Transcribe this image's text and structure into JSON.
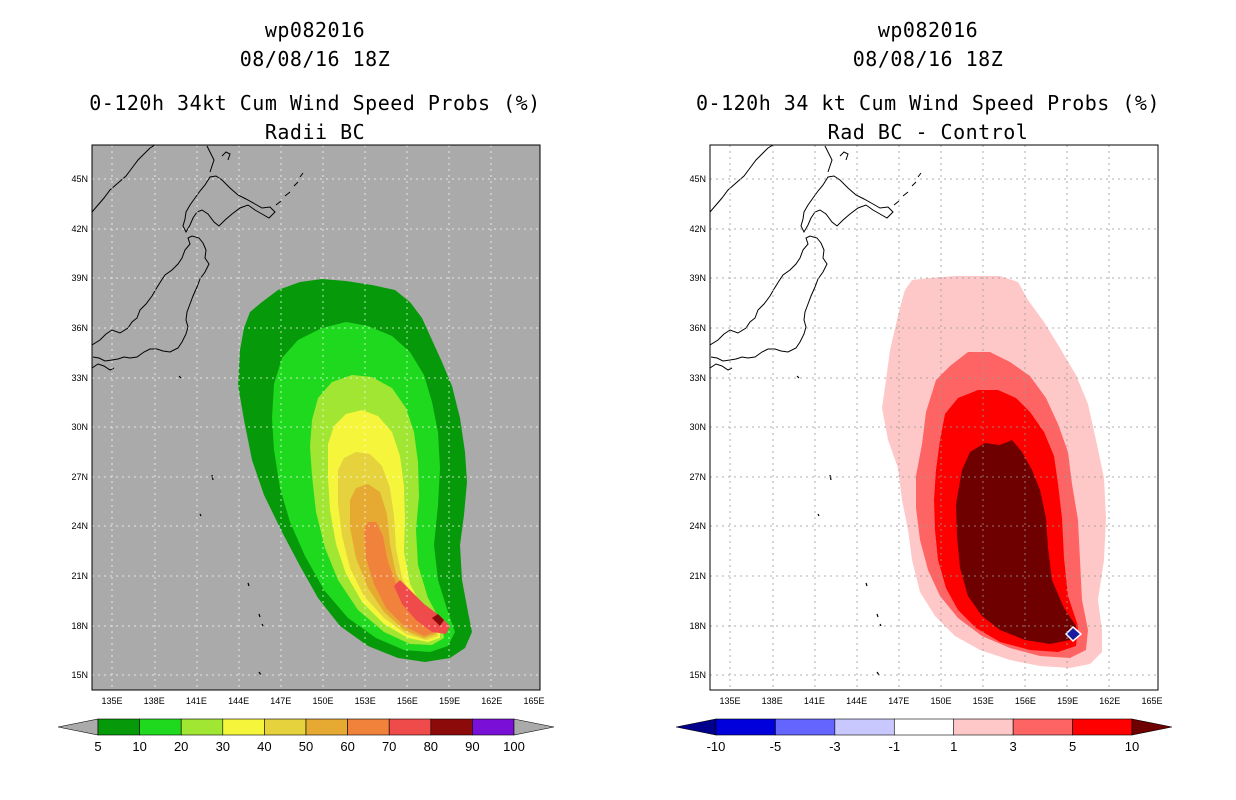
{
  "left_panel": {
    "storm_id": "wp082016",
    "date": "08/08/16 18Z",
    "product": "0-120h 34kt Cum Wind Speed Probs (%)",
    "subtitle": "Radii BC",
    "colorbar": {
      "labels": [
        "5",
        "10",
        "20",
        "30",
        "40",
        "50",
        "60",
        "70",
        "80",
        "90",
        "100"
      ],
      "colors": [
        "#069a0a",
        "#1ed91e",
        "#a0e632",
        "#f5f53c",
        "#e6d23c",
        "#e6aa32",
        "#f0823c",
        "#f04b4b",
        "#8c0a0a",
        "#7a10d8"
      ],
      "under_color": "#aaaaaa",
      "over_color": "#aaaaaa"
    },
    "background_color": "#aaaaaa"
  },
  "right_panel": {
    "storm_id": "wp082016",
    "date": "08/08/16 18Z",
    "product": "0-120h 34 kt Cum Wind Speed Probs (%)",
    "subtitle": "Rad BC - Control",
    "colorbar": {
      "labels": [
        "-10",
        "-5",
        "-3",
        "-1",
        "1",
        "3",
        "5",
        "10"
      ],
      "colors": [
        "#0000dd",
        "#6464ff",
        "#c8c8ff",
        "#ffffff",
        "#ffc8c8",
        "#ff6464",
        "#ff0000"
      ],
      "under_color": "#00008c",
      "over_color": "#6e0000"
    },
    "background_color": "#ffffff"
  },
  "axes": {
    "lon_labels": [
      "135E",
      "138E",
      "141E",
      "144E",
      "147E",
      "150E",
      "153E",
      "156E",
      "159E",
      "162E",
      "165E"
    ],
    "lat_labels": [
      "45N",
      "42N",
      "39N",
      "36N",
      "33N",
      "30N",
      "27N",
      "24N",
      "21N",
      "18N",
      "15N"
    ]
  }
}
